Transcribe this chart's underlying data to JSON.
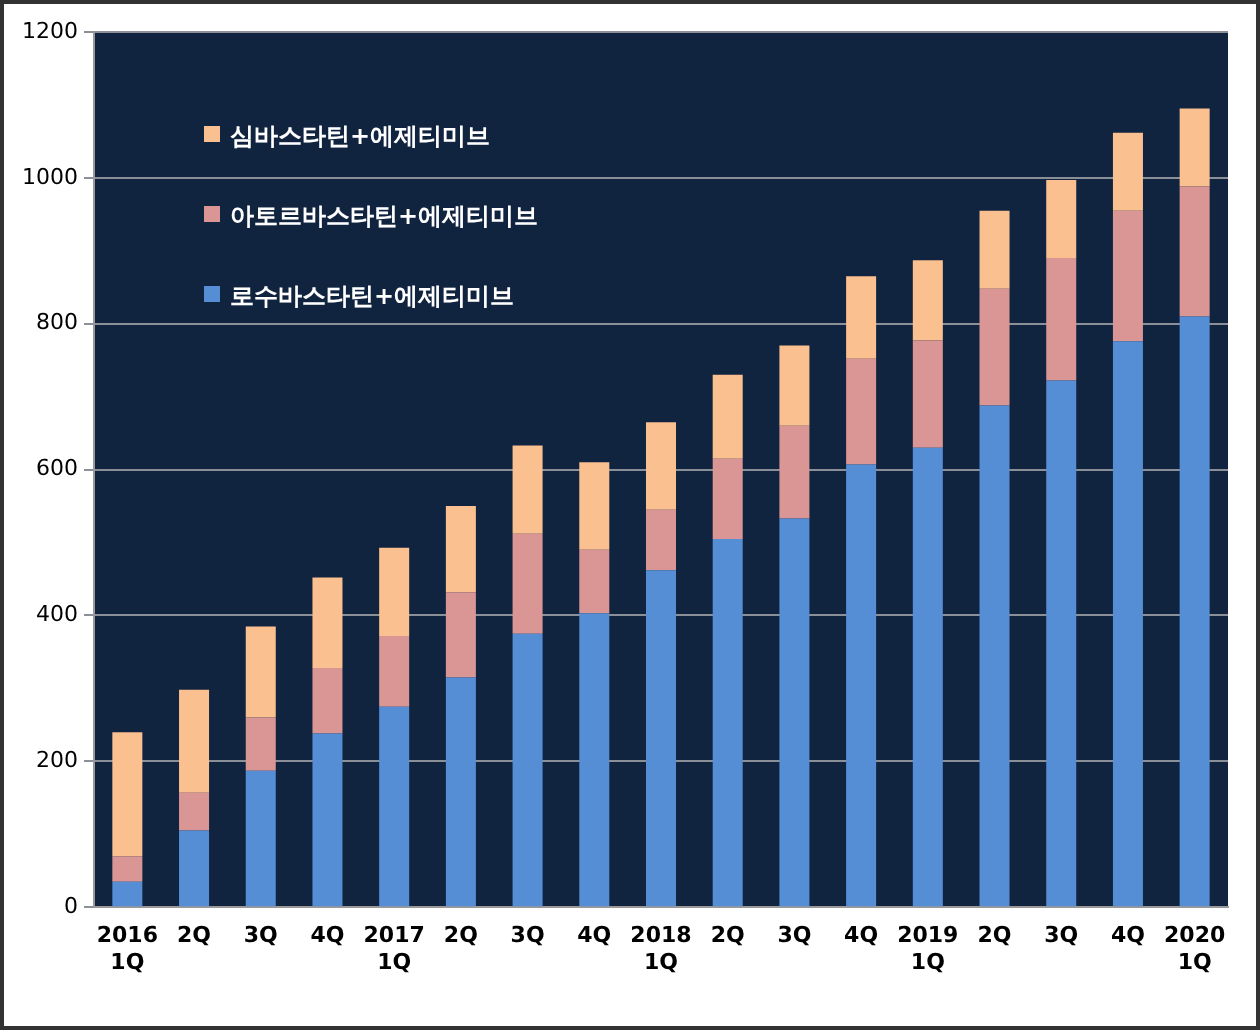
{
  "chart_data": {
    "type": "bar",
    "stacked": true,
    "categories": [
      "2016\n1Q",
      "2Q",
      "3Q",
      "4Q",
      "2017\n1Q",
      "2Q",
      "3Q",
      "4Q",
      "2018\n1Q",
      "2Q",
      "3Q",
      "4Q",
      "2019\n1Q",
      "2Q",
      "3Q",
      "4Q",
      "2020\n1Q"
    ],
    "series": [
      {
        "name": "로수바스타틴+에제티미브",
        "color": "#558ed5",
        "values": [
          35,
          105,
          187,
          238,
          275,
          315,
          375,
          403,
          462,
          505,
          533,
          607,
          630,
          688,
          722,
          776,
          810
        ]
      },
      {
        "name": "아토르바스타틴+에제티미브",
        "color": "#d99694",
        "values": [
          35,
          52,
          73,
          90,
          97,
          117,
          137,
          87,
          83,
          110,
          127,
          145,
          147,
          160,
          168,
          179,
          178
        ]
      },
      {
        "name": "심바스타틴+에제티미브",
        "color": "#fac090",
        "values": [
          170,
          141,
          125,
          124,
          121,
          118,
          121,
          120,
          120,
          115,
          110,
          113,
          110,
          107,
          107,
          107,
          107
        ]
      }
    ],
    "ylim": [
      0,
      1200
    ],
    "yticks": [
      0,
      200,
      400,
      600,
      800,
      1000,
      1200
    ],
    "grid": "y",
    "legend": "top left"
  }
}
